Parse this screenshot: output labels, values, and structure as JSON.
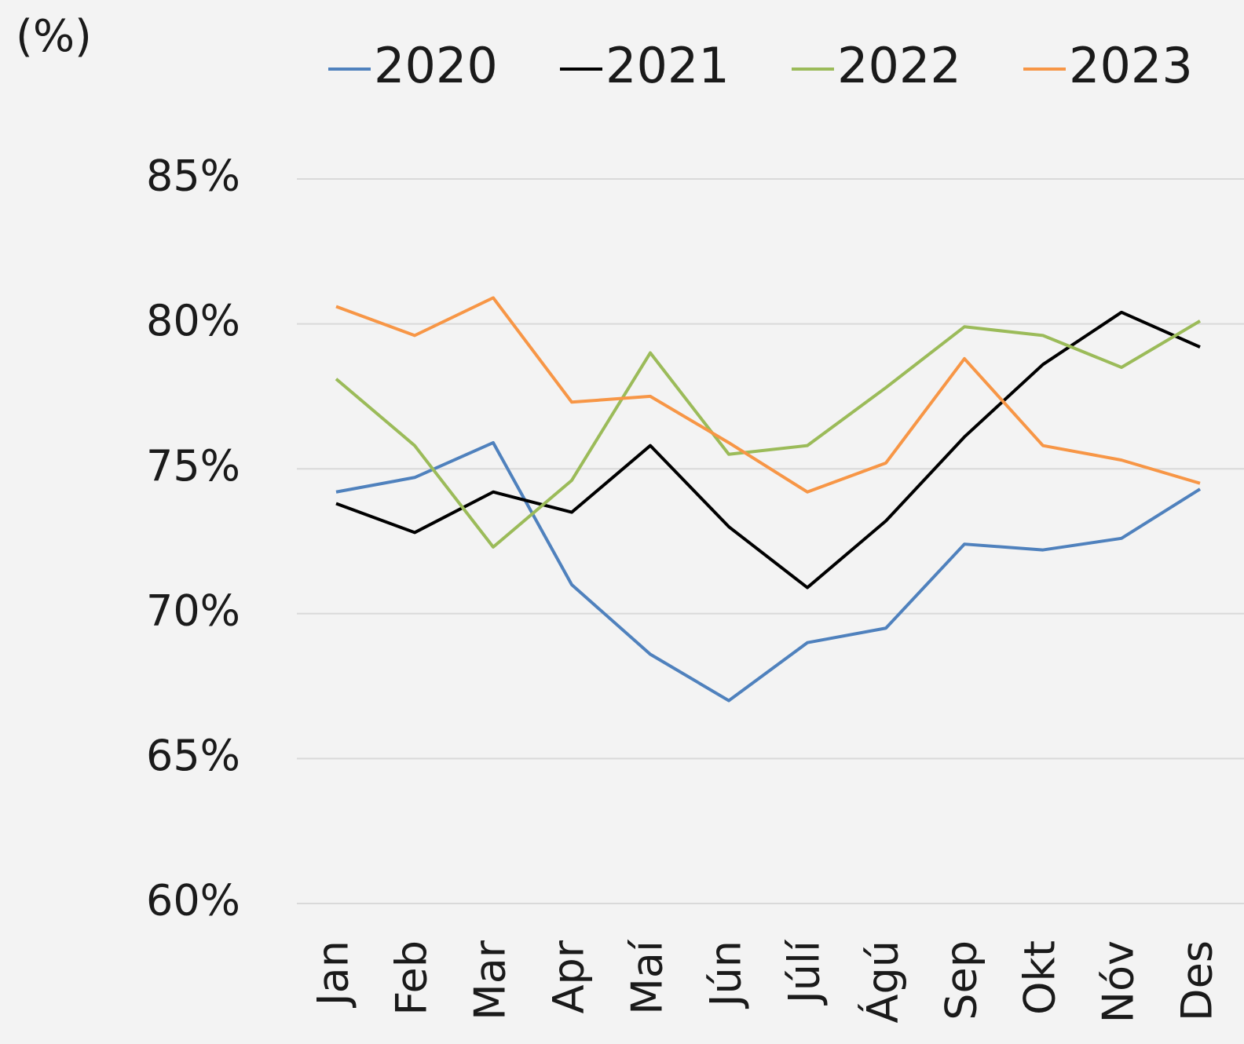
{
  "chart_data": {
    "type": "line",
    "y_label": "(%)",
    "categories": [
      "Jan",
      "Feb",
      "Mar",
      "Apr",
      "Maí",
      "Jún",
      "Júlí",
      "Ágú",
      "Sep",
      "Okt",
      "Nóv",
      "Des"
    ],
    "series": [
      {
        "name": "2020",
        "color": "#4f81bd",
        "values": [
          74.2,
          74.7,
          75.9,
          71.0,
          68.6,
          67.0,
          69.0,
          69.5,
          72.4,
          72.2,
          72.6,
          74.3
        ]
      },
      {
        "name": "2021",
        "color": "#000000",
        "values": [
          73.8,
          72.8,
          74.2,
          73.5,
          75.8,
          73.0,
          70.9,
          73.2,
          76.1,
          78.6,
          80.4,
          79.2
        ]
      },
      {
        "name": "2022",
        "color": "#9bbb59",
        "values": [
          78.1,
          75.8,
          72.3,
          74.6,
          79.0,
          75.5,
          75.8,
          77.8,
          79.9,
          79.6,
          78.5,
          80.1
        ]
      },
      {
        "name": "2023",
        "color": "#f79646",
        "values": [
          80.6,
          79.6,
          80.9,
          77.3,
          77.5,
          75.9,
          74.2,
          75.2,
          78.8,
          75.8,
          75.3,
          74.5
        ]
      }
    ],
    "ylim": [
      60,
      85
    ],
    "yticks": [
      {
        "value": 60,
        "label": "60%"
      },
      {
        "value": 65,
        "label": "65%"
      },
      {
        "value": 70,
        "label": "70%"
      },
      {
        "value": 75,
        "label": "75%"
      },
      {
        "value": 80,
        "label": "80%"
      },
      {
        "value": 85,
        "label": "85%"
      }
    ],
    "grid": true,
    "legend": "top"
  }
}
